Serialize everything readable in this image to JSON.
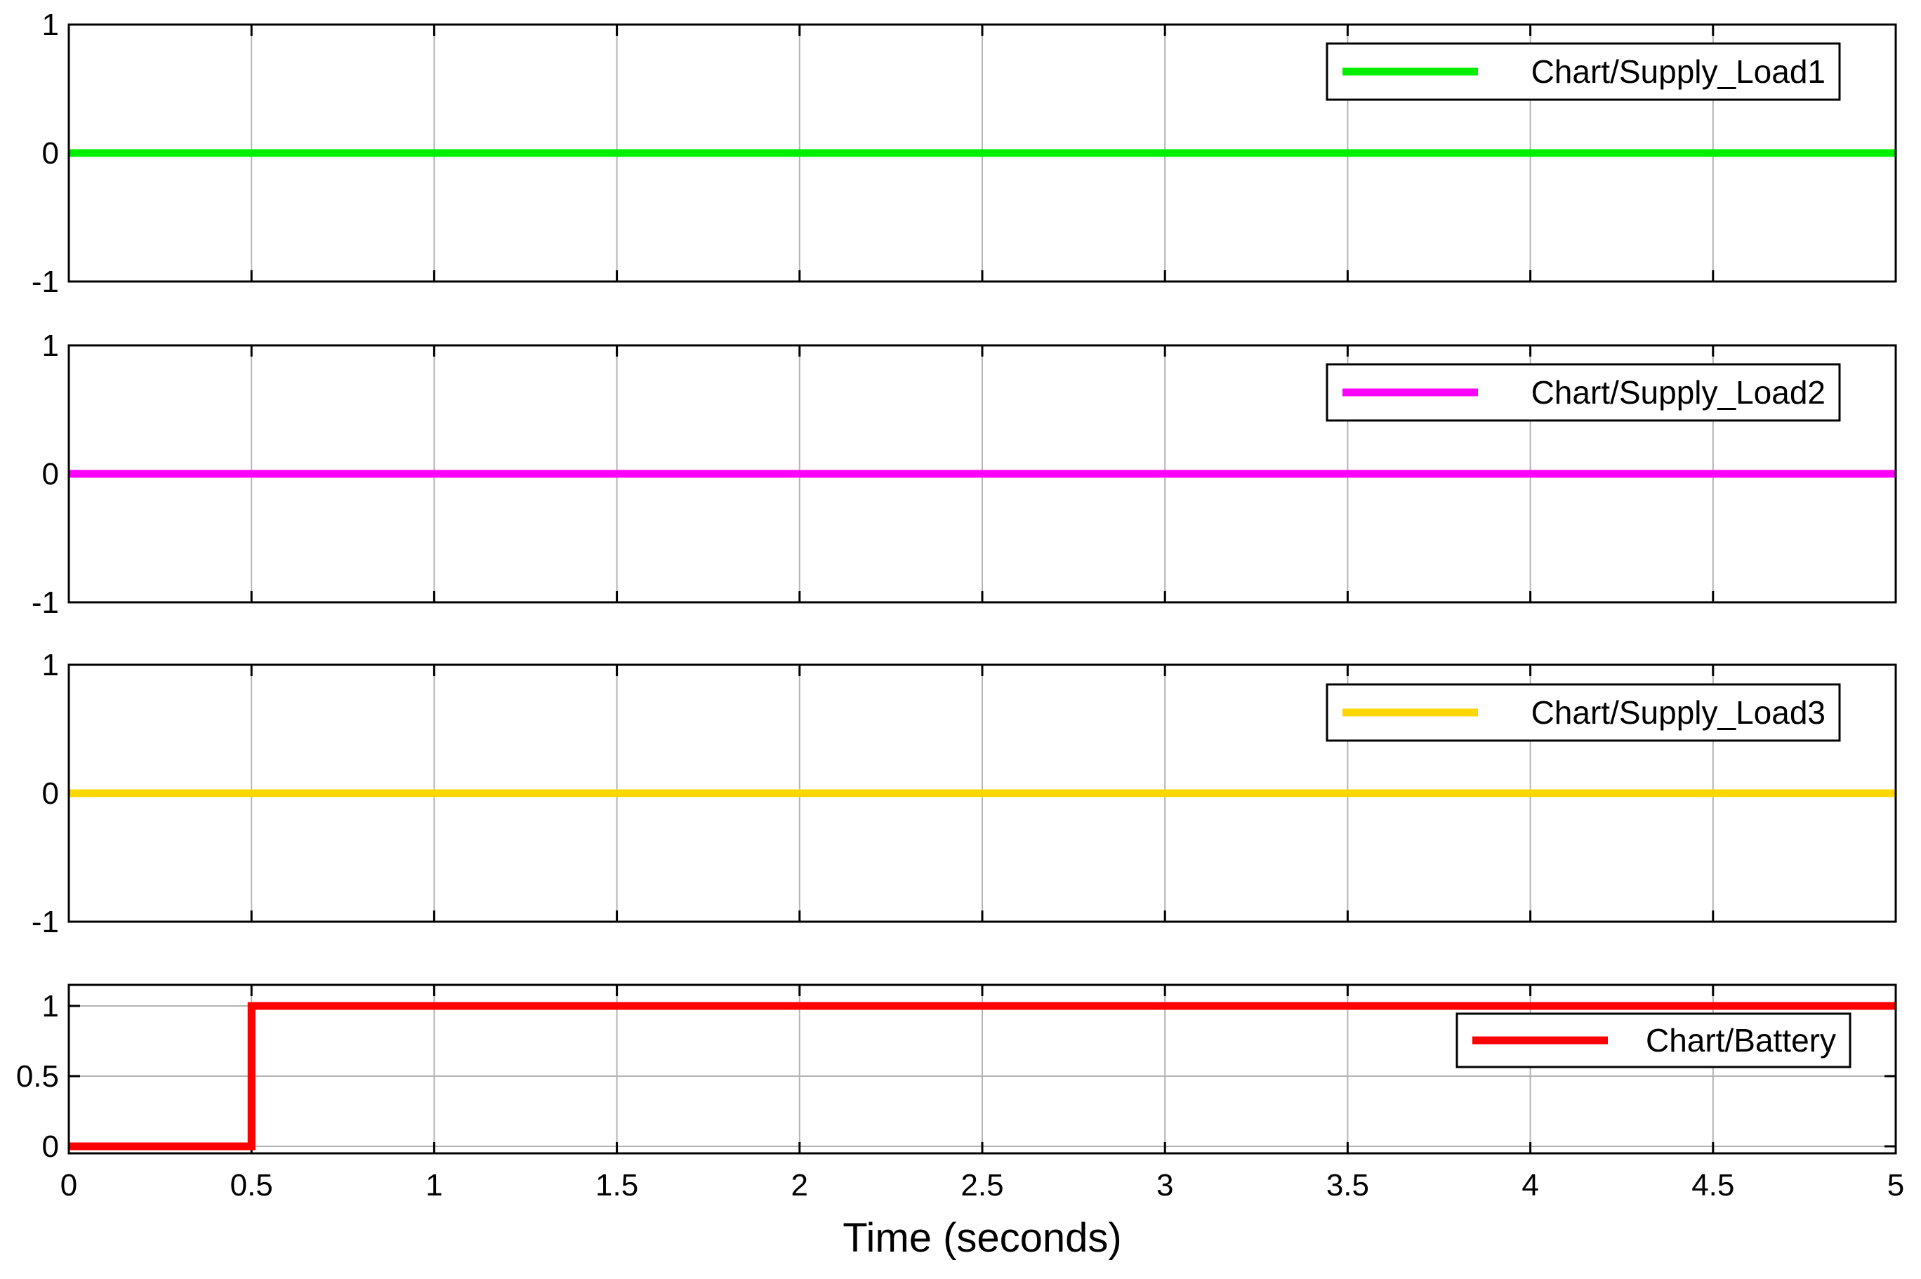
{
  "chart_data": [
    {
      "type": "line",
      "title": "",
      "ylabel": "",
      "xlim": [
        0,
        5
      ],
      "ylim": [
        -1,
        1
      ],
      "yticks": [
        1,
        0,
        -1
      ],
      "grid": true,
      "legend_position": "top-right",
      "series": [
        {
          "name": "Chart/Supply_Load1",
          "color": "#00ee00",
          "x": [
            0,
            5
          ],
          "y": [
            0,
            0
          ]
        }
      ]
    },
    {
      "type": "line",
      "title": "",
      "ylabel": "",
      "xlim": [
        0,
        5
      ],
      "ylim": [
        -1,
        1
      ],
      "yticks": [
        1,
        0,
        -1
      ],
      "grid": true,
      "legend_position": "top-right",
      "series": [
        {
          "name": "Chart/Supply_Load2",
          "color": "#ff00ff",
          "x": [
            0,
            5
          ],
          "y": [
            0,
            0
          ]
        }
      ]
    },
    {
      "type": "line",
      "title": "",
      "ylabel": "",
      "xlim": [
        0,
        5
      ],
      "ylim": [
        -1,
        1
      ],
      "yticks": [
        1,
        0,
        -1
      ],
      "grid": true,
      "legend_position": "top-right",
      "series": [
        {
          "name": "Chart/Supply_Load3",
          "color": "#ffd700",
          "x": [
            0,
            5
          ],
          "y": [
            0,
            0
          ]
        }
      ]
    },
    {
      "type": "line",
      "title": "",
      "ylabel": "",
      "xlabel": "Time (seconds)",
      "xlim": [
        0,
        5
      ],
      "ylim": [
        -0.05,
        1.15
      ],
      "yticks": [
        1,
        0.5,
        0
      ],
      "grid": true,
      "legend_position": "right",
      "series": [
        {
          "name": "Chart/Battery",
          "color": "#ff0000",
          "x": [
            0,
            0.5,
            0.5,
            5
          ],
          "y": [
            0,
            0,
            1,
            1
          ]
        }
      ]
    }
  ],
  "x_ticks": [
    0,
    0.5,
    1,
    1.5,
    2,
    2.5,
    3,
    3.5,
    4,
    4.5,
    5
  ],
  "x_tick_labels": [
    "0",
    "0.5",
    "1",
    "1.5",
    "2",
    "2.5",
    "3",
    "3.5",
    "4",
    "4.5",
    "5"
  ],
  "xlabel": "Time (seconds)"
}
